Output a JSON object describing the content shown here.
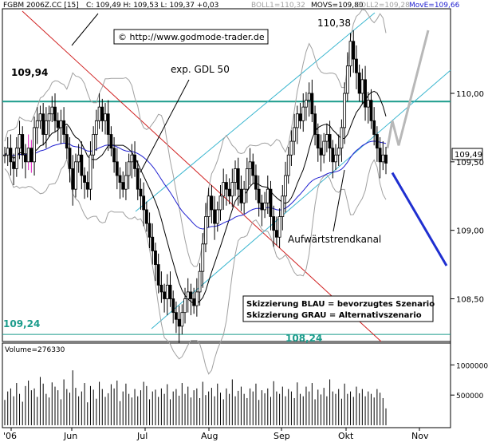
{
  "colors": {
    "price_bars": "#000000",
    "bollinger": "#a0a0a0",
    "movs": "#000000",
    "move": "#2020d0",
    "channel": "#3ab6cf",
    "resistance": "#1c9c8c",
    "red_line": "#d02020",
    "scenario_blue": "#1f2fd0",
    "scenario_gray": "#b8b8b8",
    "magenta": "#e020c0"
  },
  "header": {
    "instrument": "FGBM 2006Z.CC [15]",
    "quote": "C: 109,49 H: 109,53 L: 109,37 +0,03",
    "boll1": "BOLL1=110,32",
    "movs": "MOVS=109,80",
    "boll2": "BOLL2=109,28",
    "move": "MovE=109,66"
  },
  "copyright": "© http://www.godmode-trader.de",
  "annotations": {
    "gdl_label": "exp. GDL 50",
    "high_label": "110,38",
    "resistance_label": "109,94",
    "support_label_left": "109,24",
    "support_label_mid": "108,24",
    "trend_channel_label": "Aufwärtstrendkanal",
    "scenario_line1": "Skizzierung BLAU = bevorzugtes Szenario",
    "scenario_line2": "Skizzierung GRAU = Alternativszenario"
  },
  "last_price_tag": "109,49",
  "volume_label": "Volume=276330",
  "chart_data": {
    "type": "candlestick",
    "title": "FGBM 2006Z.CC [15]",
    "price_axis": {
      "min": 108.2,
      "max": 110.6,
      "ticks": [
        "110,00",
        "109,50",
        "109,00",
        "108,50"
      ]
    },
    "volume_axis": {
      "ticks": [
        "1000000",
        "500000"
      ]
    },
    "x_ticks": [
      "'06",
      "Jun",
      "Jul",
      "Aug",
      "Sep",
      "Okt",
      "Nov"
    ],
    "close_series": [
      109.55,
      109.6,
      109.5,
      109.45,
      109.6,
      109.7,
      109.55,
      109.5,
      109.6,
      109.5,
      109.75,
      109.8,
      109.85,
      109.7,
      109.8,
      109.85,
      109.9,
      109.8,
      109.75,
      109.8,
      109.7,
      109.6,
      109.45,
      109.3,
      109.5,
      109.55,
      109.4,
      109.35,
      109.3,
      109.55,
      109.7,
      109.8,
      109.9,
      109.8,
      109.85,
      109.7,
      109.6,
      109.5,
      109.4,
      109.35,
      109.3,
      109.4,
      109.5,
      109.55,
      109.45,
      109.3,
      109.25,
      109.15,
      109.05,
      108.95,
      108.85,
      108.75,
      108.6,
      108.55,
      108.5,
      108.6,
      108.5,
      108.4,
      108.35,
      108.3,
      108.4,
      108.5,
      108.55,
      108.5,
      108.45,
      108.55,
      108.7,
      108.9,
      109.1,
      109.25,
      109.15,
      109.05,
      109.15,
      109.25,
      109.35,
      109.3,
      109.25,
      109.35,
      109.45,
      109.3,
      109.2,
      109.3,
      109.45,
      109.5,
      109.4,
      109.3,
      109.2,
      109.15,
      109.2,
      109.3,
      109.1,
      109.0,
      108.95,
      109.1,
      109.25,
      109.4,
      109.55,
      109.65,
      109.75,
      109.85,
      109.8,
      109.9,
      109.95,
      110.0,
      109.85,
      109.7,
      109.6,
      109.55,
      109.65,
      109.7,
      109.6,
      109.5,
      109.55,
      109.6,
      109.75,
      110.0,
      110.2,
      110.38,
      110.25,
      110.15,
      110.0,
      110.1,
      109.9,
      109.95,
      109.8,
      109.7,
      109.6,
      109.5,
      109.55,
      109.49
    ],
    "volume_series": [
      420000,
      560000,
      610000,
      480000,
      700000,
      520000,
      390000,
      650000,
      740000,
      580000,
      610000,
      470000,
      800000,
      690000,
      520000,
      460000,
      710000,
      640000,
      580000,
      430000,
      760000,
      600000,
      540000,
      910000,
      620000,
      480000,
      560000,
      700000,
      380000,
      650000,
      590000,
      440000,
      720000,
      600000,
      470000,
      530000,
      680000,
      610000,
      740000,
      400000,
      560000,
      690000,
      520000,
      460000,
      600000,
      480000,
      580000,
      720000,
      650000,
      430000,
      560000,
      590000,
      470000,
      610000,
      520000,
      680000,
      430000,
      560000,
      600000,
      490000,
      700000,
      520000,
      640000,
      460000,
      580000,
      610000,
      450000,
      720000,
      500000,
      560000,
      620000,
      480000,
      690000,
      540000,
      430000,
      610000,
      520000,
      760000,
      480000,
      570000,
      640000,
      520000,
      450000,
      610000,
      560000,
      690000,
      420000,
      580000,
      530000,
      610000,
      470000,
      730000,
      560000,
      520000,
      640000,
      480000,
      600000,
      560000,
      450000,
      710000,
      520000,
      480000,
      640000,
      560000,
      700000,
      430000,
      590000,
      510000,
      620000,
      480000,
      760000,
      560000,
      520000,
      600000,
      440000,
      690000,
      520000,
      560000,
      470000,
      640000,
      530000,
      600000,
      480000,
      560000,
      520000,
      460000,
      600000,
      540000,
      450000,
      280000
    ]
  }
}
